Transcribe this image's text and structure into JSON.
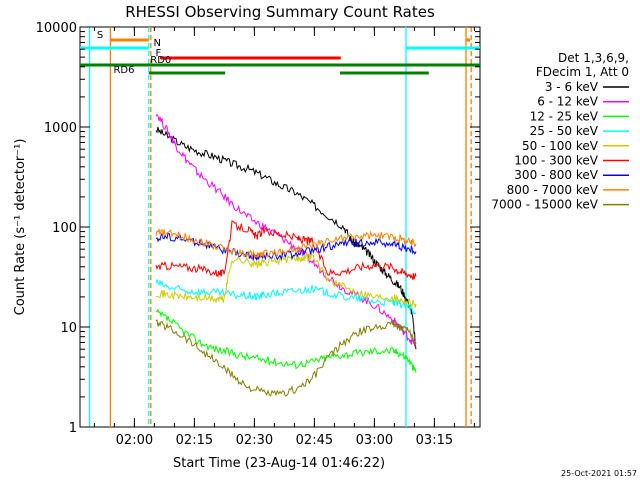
{
  "chart_data": {
    "type": "line",
    "title": "RHESSI Observing Summary Count Rates",
    "xlabel": "Start Time (23-Aug-14 01:46:22)",
    "ylabel": "Count Rate (s⁻¹ detector⁻¹)",
    "y_scale": "log",
    "ylim": [
      1,
      10000
    ],
    "xlim_minutes": [
      0,
      100
    ],
    "y_ticks": [
      {
        "label": "1",
        "value": 1
      },
      {
        "label": "10",
        "value": 10
      },
      {
        "label": "100",
        "value": 100
      },
      {
        "label": "1000",
        "value": 1000
      },
      {
        "label": "10000",
        "value": 10000
      }
    ],
    "x_ticks": [
      {
        "label": "02:00",
        "minute": 13.6
      },
      {
        "label": "02:15",
        "minute": 28.6
      },
      {
        "label": "02:30",
        "minute": 43.6
      },
      {
        "label": "02:45",
        "minute": 58.6
      },
      {
        "label": "03:00",
        "minute": 73.6
      },
      {
        "label": "03:15",
        "minute": 88.6
      }
    ],
    "legend_header": [
      "Det 1,3,6,9,",
      "FDecim 1, Att 0"
    ],
    "legend_position": "right",
    "series": [
      {
        "name": "3 - 6 keV",
        "color": "#000000",
        "points": [
          [
            19,
            950
          ],
          [
            22,
            800
          ],
          [
            26,
            650
          ],
          [
            30,
            560
          ],
          [
            34,
            500
          ],
          [
            38,
            430
          ],
          [
            42,
            380
          ],
          [
            46,
            320
          ],
          [
            50,
            260
          ],
          [
            54,
            220
          ],
          [
            58,
            170
          ],
          [
            62,
            130
          ],
          [
            66,
            100
          ],
          [
            68,
            72
          ],
          [
            70,
            64
          ],
          [
            72,
            55
          ],
          [
            74,
            44
          ],
          [
            76,
            36
          ],
          [
            78,
            30
          ],
          [
            80,
            25
          ],
          [
            82,
            18
          ],
          [
            83,
            14
          ],
          [
            84,
            6
          ]
        ]
      },
      {
        "name": "6 - 12 keV",
        "color": "#ff00ff",
        "points": [
          [
            19,
            1400
          ],
          [
            22,
            900
          ],
          [
            24,
            650
          ],
          [
            27,
            450
          ],
          [
            30,
            330
          ],
          [
            34,
            240
          ],
          [
            38,
            170
          ],
          [
            42,
            125
          ],
          [
            46,
            100
          ],
          [
            50,
            80
          ],
          [
            54,
            62
          ],
          [
            58,
            45
          ],
          [
            62,
            32
          ],
          [
            66,
            24
          ],
          [
            70,
            20
          ],
          [
            74,
            16
          ],
          [
            78,
            12
          ],
          [
            80,
            10
          ],
          [
            82,
            8
          ],
          [
            84,
            6.5
          ]
        ]
      },
      {
        "name": "12 - 25 keV",
        "color": "#00ff00",
        "points": [
          [
            19,
            14
          ],
          [
            22,
            12
          ],
          [
            26,
            9
          ],
          [
            30,
            7
          ],
          [
            34,
            6
          ],
          [
            38,
            5.5
          ],
          [
            42,
            5
          ],
          [
            46,
            4.7
          ],
          [
            50,
            4.4
          ],
          [
            54,
            4.2
          ],
          [
            58,
            4.5
          ],
          [
            62,
            5
          ],
          [
            66,
            5.3
          ],
          [
            70,
            5.5
          ],
          [
            74,
            5.8
          ],
          [
            78,
            5.8
          ],
          [
            80,
            5.5
          ],
          [
            82,
            4.8
          ],
          [
            84,
            3.5
          ]
        ]
      },
      {
        "name": "25 - 50 keV",
        "color": "#00ffff",
        "points": [
          [
            19,
            28
          ],
          [
            22,
            25
          ],
          [
            26,
            23
          ],
          [
            30,
            22.5
          ],
          [
            34,
            22
          ],
          [
            38,
            21
          ],
          [
            42,
            20.5
          ],
          [
            44,
            20
          ],
          [
            46,
            21
          ],
          [
            50,
            22
          ],
          [
            54,
            23
          ],
          [
            58,
            24
          ],
          [
            62,
            22
          ],
          [
            66,
            20
          ],
          [
            70,
            19
          ],
          [
            74,
            18
          ],
          [
            78,
            17.5
          ],
          [
            80,
            17
          ],
          [
            82,
            16
          ],
          [
            84,
            14
          ]
        ]
      },
      {
        "name": "50 - 100 keV",
        "color": "#cccc00",
        "points": [
          [
            19,
            22
          ],
          [
            22,
            21
          ],
          [
            26,
            20
          ],
          [
            30,
            19.5
          ],
          [
            34,
            19
          ],
          [
            36,
            19
          ],
          [
            38,
            48
          ],
          [
            42,
            45
          ],
          [
            44,
            42
          ],
          [
            46,
            44
          ],
          [
            50,
            47
          ],
          [
            54,
            48
          ],
          [
            56,
            50
          ],
          [
            58,
            52
          ],
          [
            62,
            30
          ],
          [
            66,
            25
          ],
          [
            70,
            22
          ],
          [
            74,
            20
          ],
          [
            78,
            20
          ],
          [
            80,
            19
          ],
          [
            82,
            18
          ],
          [
            84,
            17
          ]
        ]
      },
      {
        "name": "100 - 300 keV",
        "color": "#ff0000",
        "points": [
          [
            19,
            40
          ],
          [
            22,
            41
          ],
          [
            26,
            40
          ],
          [
            30,
            38
          ],
          [
            34,
            35
          ],
          [
            36,
            34
          ],
          [
            38,
            105
          ],
          [
            42,
            95
          ],
          [
            44,
            80
          ],
          [
            46,
            92
          ],
          [
            50,
            85
          ],
          [
            54,
            78
          ],
          [
            56,
            74
          ],
          [
            58,
            72
          ],
          [
            62,
            35
          ],
          [
            66,
            36
          ],
          [
            70,
            40
          ],
          [
            74,
            42
          ],
          [
            78,
            40
          ],
          [
            80,
            36
          ],
          [
            82,
            34
          ],
          [
            84,
            32
          ]
        ]
      },
      {
        "name": "300 - 800 keV",
        "color": "#0000ff",
        "points": [
          [
            19,
            78
          ],
          [
            22,
            80
          ],
          [
            26,
            75
          ],
          [
            30,
            70
          ],
          [
            34,
            62
          ],
          [
            38,
            56
          ],
          [
            42,
            52
          ],
          [
            44,
            50
          ],
          [
            46,
            50
          ],
          [
            50,
            52
          ],
          [
            54,
            54
          ],
          [
            58,
            58
          ],
          [
            62,
            64
          ],
          [
            66,
            68
          ],
          [
            70,
            70
          ],
          [
            74,
            70
          ],
          [
            78,
            68
          ],
          [
            80,
            64
          ],
          [
            82,
            60
          ],
          [
            84,
            57
          ]
        ]
      },
      {
        "name": "800 - 7000 keV",
        "color": "#ff8000",
        "points": [
          [
            19,
            88
          ],
          [
            22,
            86
          ],
          [
            26,
            80
          ],
          [
            30,
            72
          ],
          [
            34,
            64
          ],
          [
            38,
            58
          ],
          [
            42,
            54
          ],
          [
            44,
            52
          ],
          [
            46,
            54
          ],
          [
            50,
            56
          ],
          [
            54,
            60
          ],
          [
            58,
            65
          ],
          [
            62,
            72
          ],
          [
            66,
            78
          ],
          [
            70,
            80
          ],
          [
            74,
            82
          ],
          [
            78,
            80
          ],
          [
            80,
            76
          ],
          [
            82,
            72
          ],
          [
            84,
            68
          ]
        ]
      },
      {
        "name": "7000 - 15000 keV",
        "color": "#808000",
        "points": [
          [
            19,
            11
          ],
          [
            22,
            10
          ],
          [
            26,
            8
          ],
          [
            30,
            6
          ],
          [
            34,
            4.5
          ],
          [
            38,
            3.3
          ],
          [
            42,
            2.5
          ],
          [
            46,
            2.2
          ],
          [
            50,
            2.1
          ],
          [
            54,
            2.4
          ],
          [
            58,
            3
          ],
          [
            62,
            5
          ],
          [
            66,
            7
          ],
          [
            70,
            9
          ],
          [
            74,
            10
          ],
          [
            78,
            11
          ],
          [
            80,
            10
          ],
          [
            82,
            9
          ],
          [
            84,
            7
          ]
        ]
      }
    ],
    "vertical_markers": [
      {
        "minute": 2.4,
        "color": "#00ffff",
        "style": "solid"
      },
      {
        "minute": 7.6,
        "color": "#ff8000",
        "style": "solid"
      },
      {
        "minute": 17.2,
        "color": "#00ffff",
        "style": "dashed"
      },
      {
        "minute": 17.7,
        "color": "#ff8000",
        "style": "dashed"
      },
      {
        "minute": 81.5,
        "color": "#00ffff",
        "style": "solid"
      },
      {
        "minute": 96.5,
        "color": "#ff8000",
        "style": "solid"
      },
      {
        "minute": 97.8,
        "color": "#ff8000",
        "style": "dashed"
      }
    ],
    "status_bars": [
      {
        "label": "S",
        "color": "#ff8000",
        "segments": [
          [
            7.6,
            17.2
          ],
          [
            96.4,
            97.5
          ]
        ],
        "label_minute": 5.0
      },
      {
        "label": "N",
        "color": "#00ffff",
        "segments": [
          [
            0,
            17.2
          ],
          [
            81.5,
            100
          ]
        ],
        "label_minute": 19.3
      },
      {
        "label": "F",
        "color": "#ff0000",
        "segments": [
          [
            20.0,
            65.2
          ]
        ],
        "label_minute": 19.6
      },
      {
        "label": "RD0",
        "color": "#008000",
        "segments": [
          [
            0,
            100
          ]
        ],
        "label_minute": 20.2
      },
      {
        "label": "RD6",
        "color": "#008000",
        "segments": [
          [
            17.2,
            36.3
          ],
          [
            36.3,
            36.3
          ],
          [
            65.0,
            87.2
          ]
        ],
        "label_minute": 11.0
      }
    ],
    "grid": false
  },
  "timestamp": "25-Oct-2021 01:57"
}
